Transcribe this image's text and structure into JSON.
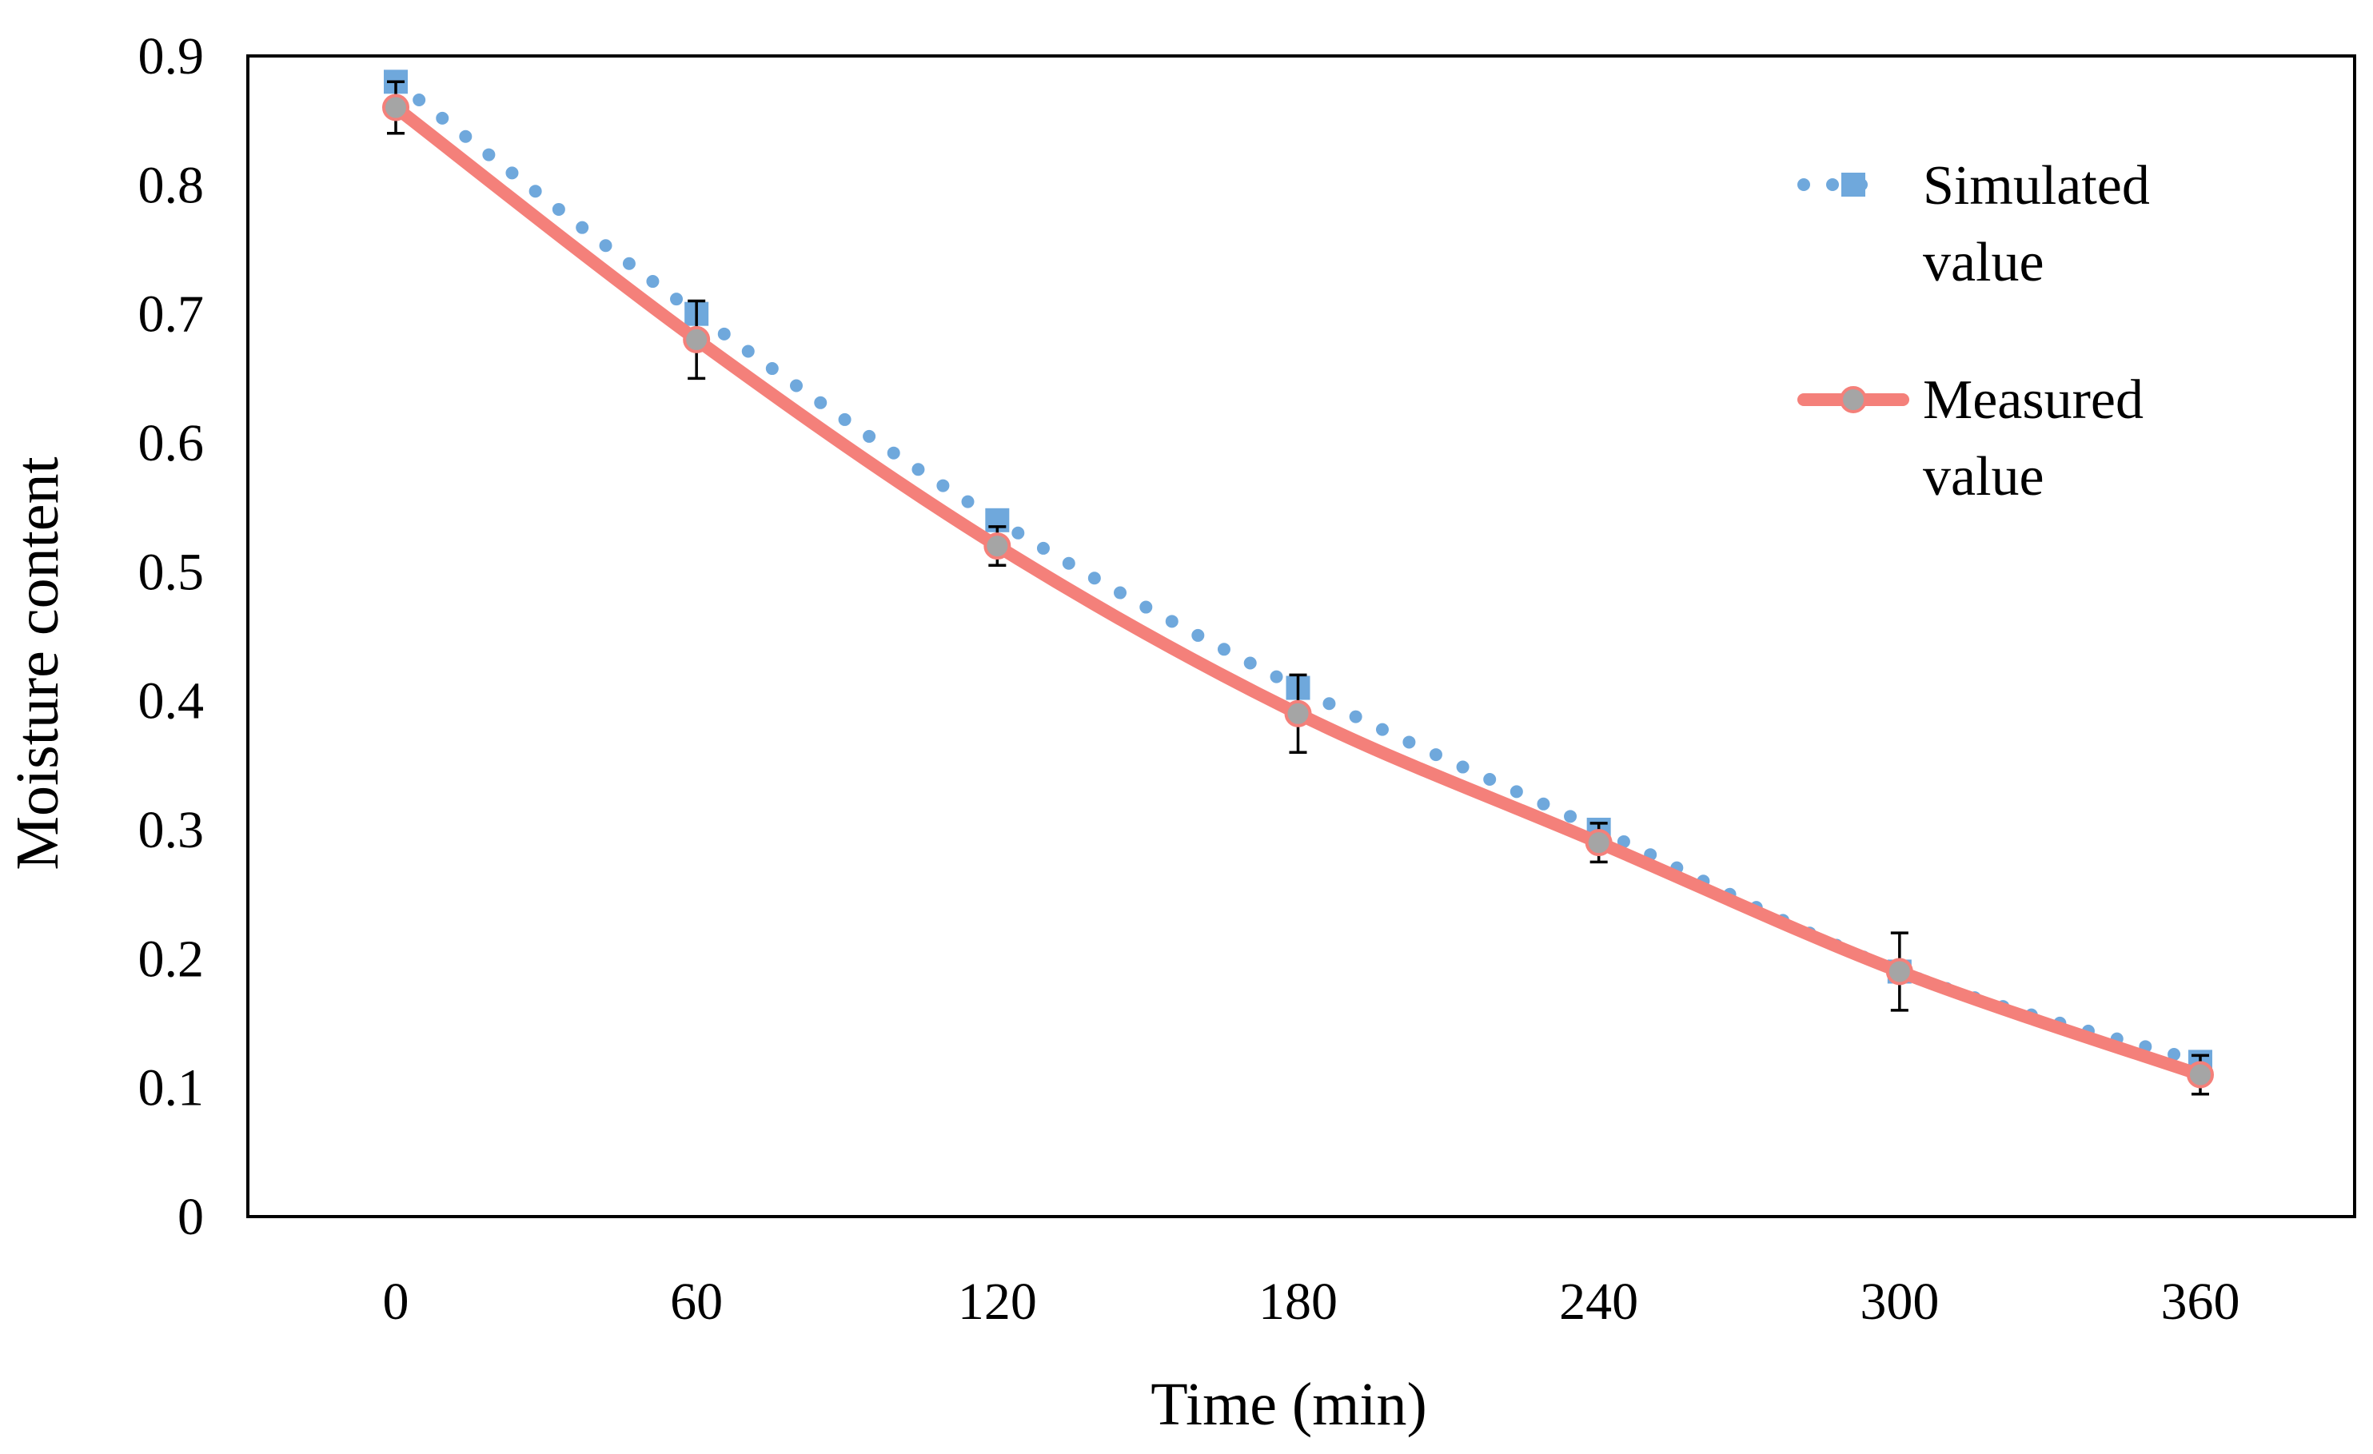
{
  "chart_data": {
    "type": "line",
    "title": "",
    "xlabel": "Time (min)",
    "ylabel": "Moisture content",
    "x": [
      0,
      60,
      120,
      180,
      240,
      300,
      360
    ],
    "x_tick_labels": [
      "0",
      "60",
      "120",
      "180",
      "240",
      "300",
      "360"
    ],
    "y_tick_labels": [
      "0",
      "0.1",
      "0.2",
      "0.3",
      "0.4",
      "0.5",
      "0.6",
      "0.7",
      "0.8",
      "0.9"
    ],
    "ylim": [
      0,
      0.9
    ],
    "grid": false,
    "legend_position": "top-right",
    "series": [
      {
        "name": "Simulated value",
        "legend_lines": [
          "Simulated",
          "value"
        ],
        "values": [
          0.88,
          0.7,
          0.54,
          0.41,
          0.3,
          0.19,
          0.12
        ],
        "color": "#6FA8DC",
        "marker": "square",
        "line_style": "dotted"
      },
      {
        "name": "Measured value",
        "legend_lines": [
          "Measured",
          "value"
        ],
        "values": [
          0.86,
          0.68,
          0.52,
          0.39,
          0.29,
          0.19,
          0.11
        ],
        "error": [
          0.02,
          0.03,
          0.015,
          0.03,
          0.015,
          0.03,
          0.015
        ],
        "color": "#F4807A",
        "marker": "circle",
        "marker_color": "#A5A5A5",
        "line_style": "solid"
      }
    ]
  }
}
